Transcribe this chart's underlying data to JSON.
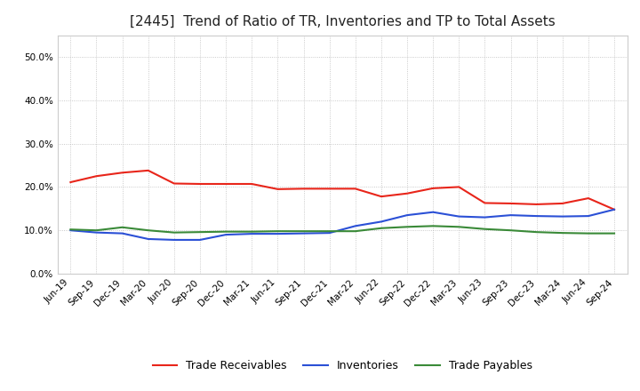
{
  "title": "[2445]  Trend of Ratio of TR, Inventories and TP to Total Assets",
  "xlabels": [
    "Jun-19",
    "Sep-19",
    "Dec-19",
    "Mar-20",
    "Jun-20",
    "Sep-20",
    "Dec-20",
    "Mar-21",
    "Jun-21",
    "Sep-21",
    "Dec-21",
    "Mar-22",
    "Jun-22",
    "Sep-22",
    "Dec-22",
    "Mar-23",
    "Jun-23",
    "Sep-23",
    "Dec-23",
    "Mar-24",
    "Jun-24",
    "Sep-24"
  ],
  "trade_receivables": [
    0.211,
    0.225,
    0.233,
    0.238,
    0.208,
    0.207,
    0.207,
    0.207,
    0.195,
    0.196,
    0.196,
    0.196,
    0.178,
    0.185,
    0.197,
    0.2,
    0.163,
    0.162,
    0.16,
    0.162,
    0.174,
    0.148
  ],
  "inventories": [
    0.1,
    0.095,
    0.093,
    0.08,
    0.078,
    0.078,
    0.09,
    0.092,
    0.092,
    0.093,
    0.094,
    0.11,
    0.12,
    0.135,
    0.142,
    0.132,
    0.13,
    0.135,
    0.133,
    0.132,
    0.133,
    0.148
  ],
  "trade_payables": [
    0.102,
    0.1,
    0.107,
    0.1,
    0.095,
    0.096,
    0.097,
    0.097,
    0.098,
    0.098,
    0.098,
    0.098,
    0.105,
    0.108,
    0.11,
    0.108,
    0.103,
    0.1,
    0.096,
    0.094,
    0.093,
    0.093
  ],
  "ylim": [
    0.0,
    0.55
  ],
  "yticks": [
    0.0,
    0.1,
    0.2,
    0.3,
    0.4,
    0.5
  ],
  "color_tr": "#e8251a",
  "color_inv": "#2b50d6",
  "color_tp": "#3a8a38",
  "background_color": "#ffffff",
  "grid_color": "#aaaaaa",
  "legend_labels": [
    "Trade Receivables",
    "Inventories",
    "Trade Payables"
  ],
  "title_fontsize": 11,
  "axis_fontsize": 7.5,
  "legend_fontsize": 9
}
